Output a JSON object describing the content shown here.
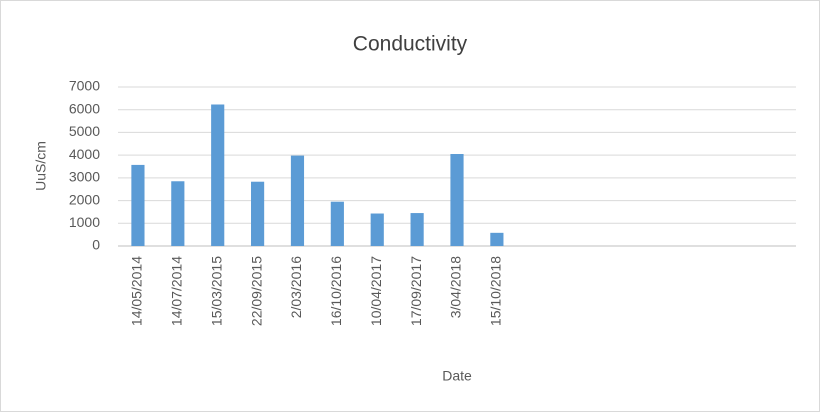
{
  "chart_data": {
    "type": "bar",
    "title": "Conductivity",
    "x_label": "Date",
    "y_label": "UuS/cm",
    "categories": [
      "14/05/2014",
      "14/07/2014",
      "15/03/2015",
      "22/09/2015",
      "2/03/2016",
      "16/10/2016",
      "10/04/2017",
      "17/09/2017",
      "3/04/2018",
      "15/10/2018",
      null,
      null,
      null,
      null,
      null,
      null,
      null
    ],
    "values": [
      3570,
      2850,
      6230,
      2830,
      3980,
      1950,
      1430,
      1450,
      4050,
      580,
      null,
      null,
      null,
      null,
      null,
      null,
      null
    ],
    "color": "#5b9bd5",
    "ylim": [
      0,
      7000
    ],
    "yticks": [
      0,
      1000,
      2000,
      3000,
      4000,
      5000,
      6000,
      7000
    ],
    "grid": true
  }
}
